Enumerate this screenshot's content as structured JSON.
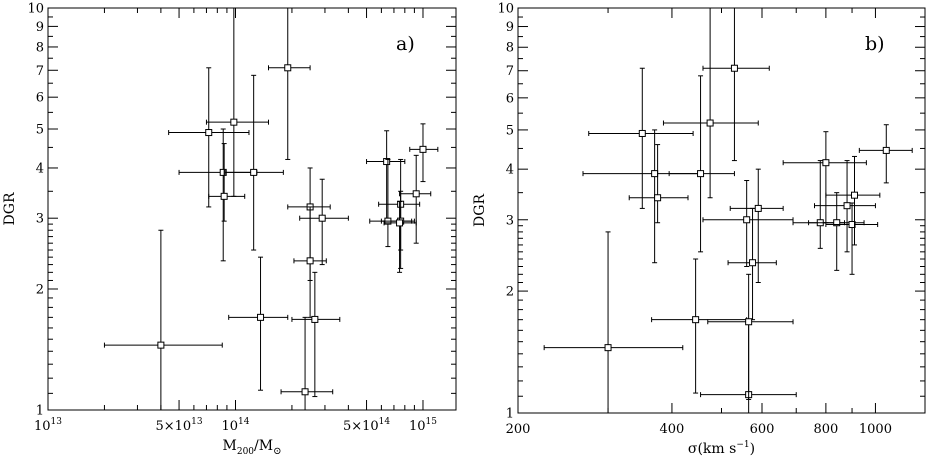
{
  "chart_data": [
    {
      "type": "scatter",
      "panel_label": "a)",
      "xlabel": "M",
      "xlabel_sub": "200",
      "xlabel_tail": "/M",
      "xlabel_symbol": "⊙",
      "ylabel": "DGR",
      "xscale": "log",
      "yscale": "log",
      "xlim": [
        10000000000000.0,
        1500000000000000.0
      ],
      "ylim": [
        1,
        10
      ],
      "x_tick_labels": [
        {
          "value": 10000000000000.0,
          "label": "10",
          "sup": "13"
        },
        {
          "value": 50000000000000.0,
          "label": "5×10",
          "sup": "13"
        },
        {
          "value": 100000000000000.0,
          "label": "10",
          "sup": "14"
        },
        {
          "value": 500000000000000.0,
          "label": "5×10",
          "sup": "14"
        },
        {
          "value": 1000000000000000.0,
          "label": "10",
          "sup": "15"
        }
      ],
      "y_tick_labels": [
        {
          "value": 1,
          "label": "1"
        },
        {
          "value": 2,
          "label": "2"
        },
        {
          "value": 3,
          "label": "3"
        },
        {
          "value": 4,
          "label": "4"
        },
        {
          "value": 5,
          "label": "5"
        },
        {
          "value": 6,
          "label": "6"
        },
        {
          "value": 7,
          "label": "7"
        },
        {
          "value": 8,
          "label": "8"
        },
        {
          "value": 9,
          "label": "9"
        },
        {
          "value": 10,
          "label": "10"
        }
      ],
      "points": [
        {
          "x": 40000000000000.0,
          "y": 1.45,
          "xlo": 20000000000000.0,
          "xhi": 85000000000000.0,
          "ylo": 1.0,
          "yhi": 2.8
        },
        {
          "x": 72000000000000.0,
          "y": 4.9,
          "xlo": 44000000000000.0,
          "xhi": 118000000000000.0,
          "ylo": 3.2,
          "yhi": 7.1
        },
        {
          "x": 86000000000000.0,
          "y": 3.9,
          "xlo": 50000000000000.0,
          "xhi": 130000000000000.0,
          "ylo": 2.35,
          "yhi": 5.0
        },
        {
          "x": 87000000000000.0,
          "y": 3.4,
          "xlo": 72000000000000.0,
          "xhi": 112000000000000.0,
          "ylo": 2.95,
          "yhi": 4.6
        },
        {
          "x": 98000000000000.0,
          "y": 5.2,
          "xlo": 70000000000000.0,
          "xhi": 150000000000000.0,
          "ylo": 3.4,
          "yhi": 10.0
        },
        {
          "x": 125000000000000.0,
          "y": 3.9,
          "xlo": 88000000000000.0,
          "xhi": 180000000000000.0,
          "ylo": 2.5,
          "yhi": 6.8
        },
        {
          "x": 136000000000000.0,
          "y": 1.7,
          "xlo": 92000000000000.0,
          "xhi": 190000000000000.0,
          "ylo": 1.12,
          "yhi": 2.4
        },
        {
          "x": 190000000000000.0,
          "y": 7.1,
          "xlo": 150000000000000.0,
          "xhi": 250000000000000.0,
          "ylo": 4.2,
          "yhi": 10.0
        },
        {
          "x": 235000000000000.0,
          "y": 1.11,
          "xlo": 175000000000000.0,
          "xhi": 330000000000000.0,
          "ylo": 1.0,
          "yhi": 1.7
        },
        {
          "x": 250000000000000.0,
          "y": 3.2,
          "xlo": 190000000000000.0,
          "xhi": 320000000000000.0,
          "ylo": 2.1,
          "yhi": 4.0
        },
        {
          "x": 250000000000000.0,
          "y": 2.35,
          "xlo": 205000000000000.0,
          "xhi": 305000000000000.0,
          "ylo": 1.7,
          "yhi": 3.2
        },
        {
          "x": 265000000000000.0,
          "y": 1.68,
          "xlo": 200000000000000.0,
          "xhi": 360000000000000.0,
          "ylo": 1.08,
          "yhi": 2.2
        },
        {
          "x": 290000000000000.0,
          "y": 3.0,
          "xlo": 220000000000000.0,
          "xhi": 400000000000000.0,
          "ylo": 2.3,
          "yhi": 3.75
        },
        {
          "x": 640000000000000.0,
          "y": 4.15,
          "xlo": 500000000000000.0,
          "xhi": 800000000000000.0,
          "ylo": 2.95,
          "yhi": 4.95
        },
        {
          "x": 650000000000000.0,
          "y": 2.95,
          "xlo": 520000000000000.0,
          "xhi": 870000000000000.0,
          "ylo": 2.55,
          "yhi": 4.2
        },
        {
          "x": 760000000000000.0,
          "y": 3.25,
          "xlo": 580000000000000.0,
          "xhi": 960000000000000.0,
          "ylo": 2.5,
          "yhi": 4.2
        },
        {
          "x": 760000000000000.0,
          "y": 2.95,
          "xlo": 600000000000000.0,
          "xhi": 900000000000000.0,
          "ylo": 2.25,
          "yhi": 3.5
        },
        {
          "x": 750000000000000.0,
          "y": 2.92,
          "xlo": 620000000000000.0,
          "xhi": 920000000000000.0,
          "ylo": 2.2,
          "yhi": 3.3
        },
        {
          "x": 920000000000000.0,
          "y": 3.45,
          "xlo": 750000000000000.0,
          "xhi": 1100000000000000.0,
          "ylo": 2.6,
          "yhi": 4.3
        },
        {
          "x": 1000000000000000.0,
          "y": 4.45,
          "xlo": 850000000000000.0,
          "xhi": 1200000000000000.0,
          "ylo": 3.7,
          "yhi": 5.15
        }
      ]
    },
    {
      "type": "scatter",
      "panel_label": "b)",
      "xlabel": "σ(km s",
      "xlabel_sup": "−1",
      "xlabel_tail": ")",
      "ylabel": "DGR",
      "xscale": "log",
      "yscale": "log",
      "xlim": [
        200,
        1250
      ],
      "ylim": [
        1,
        10
      ],
      "x_tick_labels": [
        {
          "value": 200,
          "label": "200"
        },
        {
          "value": 400,
          "label": "400"
        },
        {
          "value": 600,
          "label": "600"
        },
        {
          "value": 800,
          "label": "800"
        },
        {
          "value": 1000,
          "label": "1000"
        }
      ],
      "y_tick_labels": [
        {
          "value": 1,
          "label": "1"
        },
        {
          "value": 2,
          "label": "2"
        },
        {
          "value": 3,
          "label": "3"
        },
        {
          "value": 4,
          "label": "4"
        },
        {
          "value": 5,
          "label": "5"
        },
        {
          "value": 6,
          "label": "6"
        },
        {
          "value": 7,
          "label": "7"
        },
        {
          "value": 8,
          "label": "8"
        },
        {
          "value": 9,
          "label": "9"
        },
        {
          "value": 10,
          "label": "10"
        }
      ],
      "points": [
        {
          "x": 300,
          "y": 1.45,
          "xlo": 225,
          "xhi": 420,
          "ylo": 1.0,
          "yhi": 2.8
        },
        {
          "x": 350,
          "y": 4.9,
          "xlo": 275,
          "xhi": 440,
          "ylo": 3.2,
          "yhi": 7.1
        },
        {
          "x": 370,
          "y": 3.9,
          "xlo": 268,
          "xhi": 455,
          "ylo": 2.35,
          "yhi": 5.0
        },
        {
          "x": 375,
          "y": 3.4,
          "xlo": 330,
          "xhi": 430,
          "ylo": 2.95,
          "yhi": 4.6
        },
        {
          "x": 475,
          "y": 5.2,
          "xlo": 385,
          "xhi": 590,
          "ylo": 3.4,
          "yhi": 10.0
        },
        {
          "x": 455,
          "y": 3.9,
          "xlo": 395,
          "xhi": 530,
          "ylo": 2.5,
          "yhi": 6.8
        },
        {
          "x": 445,
          "y": 1.7,
          "xlo": 365,
          "xhi": 560,
          "ylo": 1.12,
          "yhi": 2.4
        },
        {
          "x": 530,
          "y": 7.1,
          "xlo": 460,
          "xhi": 620,
          "ylo": 4.2,
          "yhi": 10.0
        },
        {
          "x": 565,
          "y": 1.11,
          "xlo": 455,
          "xhi": 700,
          "ylo": 1.0,
          "yhi": 1.7
        },
        {
          "x": 560,
          "y": 3.0,
          "xlo": 460,
          "xhi": 690,
          "ylo": 2.3,
          "yhi": 3.75
        },
        {
          "x": 590,
          "y": 3.2,
          "xlo": 520,
          "xhi": 660,
          "ylo": 2.1,
          "yhi": 4.0
        },
        {
          "x": 575,
          "y": 2.35,
          "xlo": 515,
          "xhi": 640,
          "ylo": 1.7,
          "yhi": 3.2
        },
        {
          "x": 565,
          "y": 1.68,
          "xlo": 470,
          "xhi": 690,
          "ylo": 1.08,
          "yhi": 2.2
        },
        {
          "x": 780,
          "y": 2.95,
          "xlo": 690,
          "xhi": 870,
          "ylo": 2.55,
          "yhi": 4.2
        },
        {
          "x": 800,
          "y": 4.15,
          "xlo": 660,
          "xhi": 960,
          "ylo": 2.95,
          "yhi": 4.95
        },
        {
          "x": 840,
          "y": 2.95,
          "xlo": 740,
          "xhi": 950,
          "ylo": 2.25,
          "yhi": 3.5
        },
        {
          "x": 880,
          "y": 3.25,
          "xlo": 760,
          "xhi": 1000,
          "ylo": 2.5,
          "yhi": 4.2
        },
        {
          "x": 900,
          "y": 2.92,
          "xlo": 800,
          "xhi": 1010,
          "ylo": 2.2,
          "yhi": 3.3
        },
        {
          "x": 910,
          "y": 3.45,
          "xlo": 800,
          "xhi": 1020,
          "ylo": 2.6,
          "yhi": 4.3
        },
        {
          "x": 1050,
          "y": 4.45,
          "xlo": 930,
          "xhi": 1180,
          "ylo": 3.7,
          "yhi": 5.15
        }
      ]
    }
  ]
}
